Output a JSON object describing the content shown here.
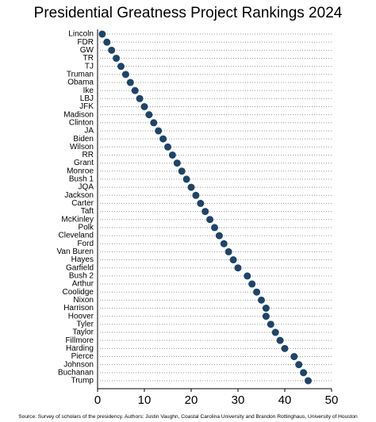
{
  "chart_data": {
    "type": "dot",
    "title": "Presidential Greatness Project Rankings 2024",
    "source": "Source: Survey of scholars of the presidency.   Authors: Justin Vaughn, Coastal Carolina University and Brandon Rottinghaus, University of Houston",
    "categories": [
      "Lincoln",
      "FDR",
      "GW",
      "TR",
      "TJ",
      "Truman",
      "Obama",
      "Ike",
      "LBJ",
      "JFK",
      "Madison",
      "Clinton",
      "JA",
      "Biden",
      "Wilson",
      "RR",
      "Grant",
      "Monroe",
      "Bush 1",
      "JQA",
      "Jackson",
      "Carter",
      "Taft",
      "McKinley",
      "Polk",
      "Cleveland",
      "Ford",
      "Van Buren",
      "Hayes",
      "Garfield",
      "Bush 2",
      "Arthur",
      "Coolidge",
      "Nixon",
      "Harrison",
      "Hoover",
      "Tyler",
      "Taylor",
      "Fillmore",
      "Harding",
      "Pierce",
      "Johnson",
      "Buchanan",
      "Trump"
    ],
    "values": [
      1,
      2,
      3,
      4,
      5,
      6,
      7,
      8,
      9,
      10,
      11,
      12,
      13,
      14,
      15,
      16,
      17,
      18,
      19,
      20,
      21,
      22,
      23,
      24,
      25,
      26,
      27,
      28,
      29,
      30,
      32,
      33,
      34,
      35,
      36,
      36,
      37,
      38,
      39,
      40,
      42,
      43,
      44,
      45
    ],
    "color": "#1f4468",
    "xlim": [
      0,
      50
    ],
    "xticks": [
      0,
      10,
      20,
      30,
      40,
      50
    ],
    "grid": true
  }
}
